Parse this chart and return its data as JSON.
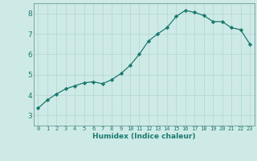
{
  "x": [
    0,
    1,
    2,
    3,
    4,
    5,
    6,
    7,
    8,
    9,
    10,
    11,
    12,
    13,
    14,
    15,
    16,
    17,
    18,
    19,
    20,
    21,
    22,
    23
  ],
  "y": [
    3.35,
    3.75,
    4.05,
    4.3,
    4.45,
    4.6,
    4.65,
    4.55,
    4.75,
    5.05,
    5.45,
    6.0,
    6.65,
    7.0,
    7.3,
    7.85,
    8.15,
    8.05,
    7.9,
    7.6,
    7.6,
    7.3,
    7.2,
    6.5
  ],
  "xlabel": "Humidex (Indice chaleur)",
  "ylim": [
    2.5,
    8.5
  ],
  "xlim": [
    -0.5,
    23.5
  ],
  "yticks": [
    3,
    4,
    5,
    6,
    7,
    8
  ],
  "xticks": [
    0,
    1,
    2,
    3,
    4,
    5,
    6,
    7,
    8,
    9,
    10,
    11,
    12,
    13,
    14,
    15,
    16,
    17,
    18,
    19,
    20,
    21,
    22,
    23
  ],
  "line_color": "#1a7a6e",
  "marker": "D",
  "marker_size": 2.2,
  "bg_color": "#ceeae7",
  "grid_color": "#b8d8d5",
  "axis_color": "#6a9e9a",
  "tick_color": "#1a7a6e",
  "xlabel_color": "#1a7a6e",
  "tick_fontsize_x": 5.0,
  "tick_fontsize_y": 6.5,
  "xlabel_fontsize": 6.5
}
